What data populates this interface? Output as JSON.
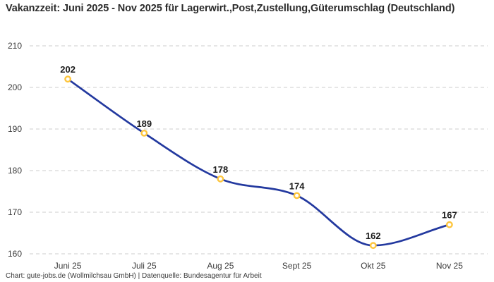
{
  "footer": "Chart: gute-jobs.de (Wollmilchsau GmbH) | Datenquelle: Bundesagentur für Arbeit",
  "chart_data": {
    "type": "line",
    "title": "Vakanzzeit: Juni 2025 - Nov 2025 für Lagerwirt.,Post,Zustellung,Güterumschlag (Deutschland)",
    "categories": [
      "Juni 25",
      "Juli 25",
      "Aug 25",
      "Sept 25",
      "Okt 25",
      "Nov 25"
    ],
    "values": [
      202,
      189,
      178,
      174,
      162,
      167
    ],
    "point_labels": [
      "202",
      "189",
      "178",
      "174",
      "162",
      "167"
    ],
    "xlabel": "",
    "ylabel": "",
    "ylim": [
      160,
      210
    ],
    "yticks": [
      210,
      200,
      190,
      180,
      170,
      160
    ],
    "grid": "horizontal-dashed",
    "legend": "none",
    "line_style": "smooth",
    "colors": {
      "line": "#23399f",
      "marker_stroke": "#fdc53c",
      "marker_fill": "#ffffff",
      "grid": "#cccccc",
      "tick_text": "#3b3b3b",
      "label_text": "#1c1c1c",
      "title_text": "#2b2b2b",
      "background": "#ffffff"
    }
  }
}
